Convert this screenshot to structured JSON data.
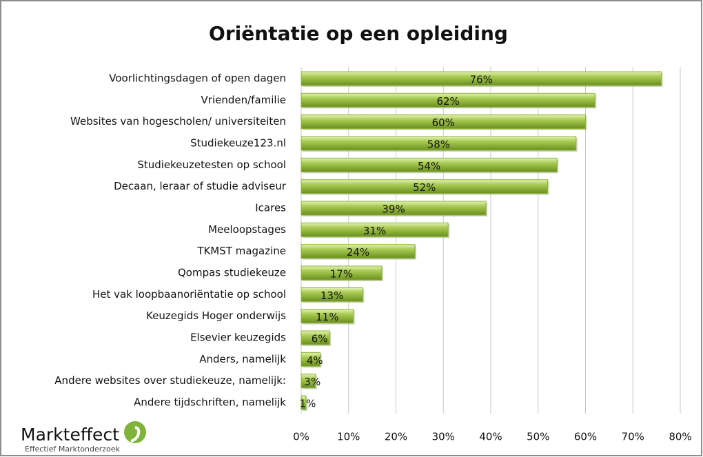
{
  "chart_data": {
    "type": "barh",
    "title": "Oriëntatie op een opleiding",
    "categories": [
      "Voorlichtingsdagen of open dagen",
      "Vrienden/familie",
      "Websites van hogescholen/ universiteiten",
      "Studiekeuze123.nl",
      "Studiekeuzetesten op school",
      "Decaan, leraar of studie adviseur",
      "Icares",
      "Meeloopstages",
      "TKMST magazine",
      "Qompas studiekeuze",
      "Het vak loopbaanoriëntatie op school",
      "Keuzegids Hoger onderwijs",
      "Elsevier keuzegids",
      "Anders, namelijk",
      "Andere websites over studiekeuze, namelijk:",
      "Andere tijdschriften, namelijk"
    ],
    "values": [
      76,
      62,
      60,
      58,
      54,
      52,
      39,
      31,
      24,
      17,
      13,
      11,
      6,
      4,
      3,
      1
    ],
    "value_labels": [
      "76%",
      "62%",
      "60%",
      "58%",
      "54%",
      "52%",
      "39%",
      "31%",
      "24%",
      "17%",
      "13%",
      "11%",
      "6%",
      "4%",
      "3%",
      "1%"
    ],
    "color": "#8db43a",
    "xlim": [
      0,
      80
    ],
    "xticks": [
      {
        "value": 0,
        "label": "0%"
      },
      {
        "value": 10,
        "label": "10%"
      },
      {
        "value": 20,
        "label": "20%"
      },
      {
        "value": 30,
        "label": "30%"
      },
      {
        "value": 40,
        "label": "40%"
      },
      {
        "value": 50,
        "label": "50%"
      },
      {
        "value": 60,
        "label": "60%"
      },
      {
        "value": 70,
        "label": "70%"
      },
      {
        "value": 80,
        "label": "80%"
      }
    ],
    "grid": true
  },
  "logo": {
    "name": "Markteffect",
    "tagline": "Effectief Marktonderzoek"
  }
}
